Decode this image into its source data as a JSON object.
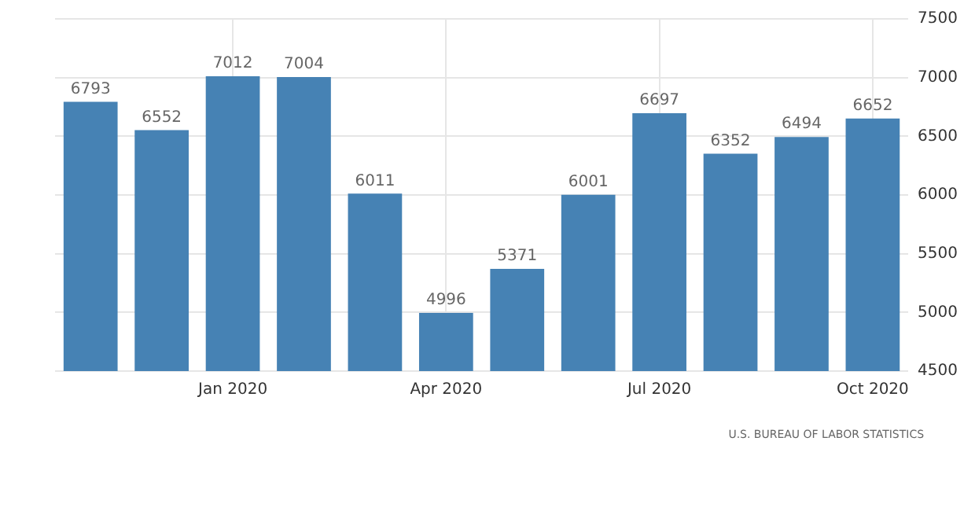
{
  "chart_data": {
    "type": "bar",
    "categories": [
      null,
      null,
      "Jan 2020",
      null,
      null,
      "Apr 2020",
      null,
      null,
      "Jul 2020",
      null,
      null,
      "Oct 2020"
    ],
    "values": [
      6793,
      6552,
      7012,
      7004,
      6011,
      4996,
      5371,
      6001,
      6697,
      6352,
      6494,
      6652
    ],
    "color": "#4682b4",
    "ylim": [
      4500,
      7500
    ],
    "yticks": [
      4500,
      5000,
      5500,
      6000,
      6500,
      7000,
      7500
    ],
    "grid": true,
    "data_labels": true,
    "legend": false,
    "annotations": [
      "U.S. BUREAU OF LABOR STATISTICS"
    ]
  }
}
